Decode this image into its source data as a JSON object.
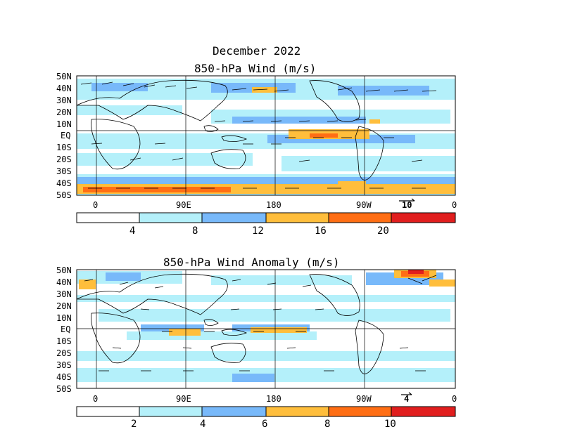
{
  "figure": {
    "title_line1": "December 2022",
    "panels": [
      {
        "title": "850-hPa Wind (m/s)",
        "lat_labels": [
          "50N",
          "40N",
          "30N",
          "20N",
          "10N",
          "EQ",
          "10S",
          "20S",
          "30S",
          "40S",
          "50S"
        ],
        "lon_labels": [
          "0",
          "90E",
          "180",
          "90W",
          "0"
        ],
        "reference_vector": "10",
        "colorbar": {
          "colors": [
            "#ffffff",
            "#b4f0fa",
            "#78b9fa",
            "#ffbe3c",
            "#ff6e14",
            "#e11e1e"
          ],
          "tick_labels": [
            "4",
            "8",
            "12",
            "16",
            "20"
          ]
        }
      },
      {
        "title": "850-hPa Wind Anomaly (m/s)",
        "lat_labels": [
          "50N",
          "40N",
          "30N",
          "20N",
          "10N",
          "EQ",
          "10S",
          "20S",
          "30S",
          "40S",
          "50S"
        ],
        "lon_labels": [
          "0",
          "90E",
          "180",
          "90W",
          "0"
        ],
        "reference_vector": "4",
        "colorbar": {
          "colors": [
            "#ffffff",
            "#b4f0fa",
            "#78b9fa",
            "#ffbe3c",
            "#ff6e14",
            "#e11e1e"
          ],
          "tick_labels": [
            "2",
            "4",
            "6",
            "8",
            "10"
          ]
        }
      }
    ]
  }
}
